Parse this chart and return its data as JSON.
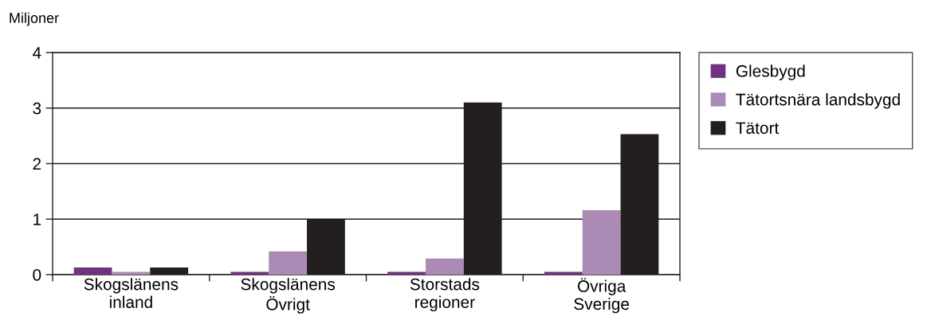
{
  "chart_data": {
    "type": "bar",
    "ylabel": "Miljoner",
    "categories": [
      "Skogslänens\ninland",
      "Skogslänens\nÖvrigt",
      "Storstads\nregioner",
      "Övriga\nSverige"
    ],
    "series": [
      {
        "name": "Glesbygd",
        "color": "#71337f",
        "values": [
          0.13,
          0.05,
          0.05,
          0.05
        ]
      },
      {
        "name": "Tätortsnära landsbygd",
        "color": "#ab8bb5",
        "values": [
          0.05,
          0.42,
          0.29,
          1.16
        ]
      },
      {
        "name": "Tätort",
        "color": "#231f20",
        "values": [
          0.13,
          1.0,
          3.1,
          2.53
        ]
      }
    ],
    "ylim": [
      0,
      4
    ],
    "yticks": [
      0,
      1,
      2,
      3,
      4
    ],
    "grid": "y",
    "legend": "right"
  }
}
